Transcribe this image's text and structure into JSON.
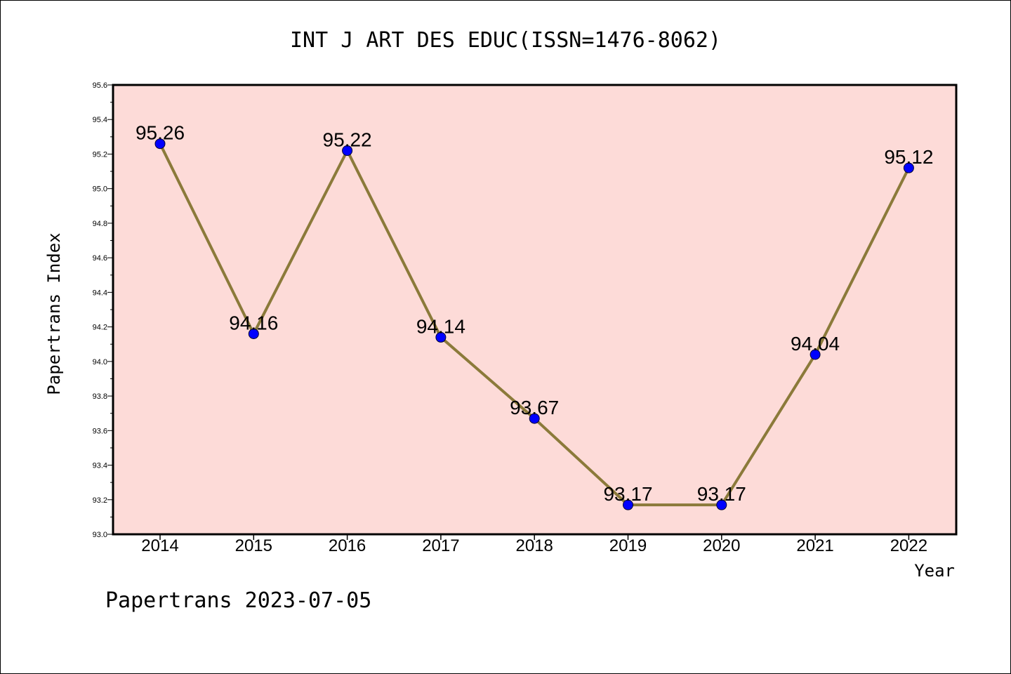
{
  "chart_data": {
    "type": "line",
    "title": "INT J ART DES EDUC(ISSN=1476-8062)",
    "xlabel": "Year",
    "ylabel": "Papertrans Index",
    "categories": [
      "2014",
      "2015",
      "2016",
      "2017",
      "2018",
      "2019",
      "2020",
      "2021",
      "2022"
    ],
    "series": [
      {
        "values": [
          95.26,
          94.16,
          95.22,
          94.14,
          93.67,
          93.17,
          93.17,
          94.04,
          95.12
        ],
        "data_labels": [
          "95.26",
          "94.16",
          "95.22",
          "94.14",
          "93.67",
          "93.17",
          "93.17",
          "94.04",
          "95.12"
        ]
      }
    ],
    "ylim": [
      93.0,
      95.6
    ],
    "yticks": [
      "93.0",
      "93.2",
      "93.4",
      "93.6",
      "93.8",
      "94.0",
      "94.2",
      "94.4",
      "94.6",
      "94.8",
      "95.0",
      "95.2",
      "95.4",
      "95.6"
    ],
    "grid": false,
    "legend": "none",
    "colors": {
      "line": "#8b7a3a",
      "marker": "#0000ff",
      "plot_background": "#fddbd8"
    }
  },
  "footer": {
    "text": "Papertrans 2023-07-05"
  }
}
